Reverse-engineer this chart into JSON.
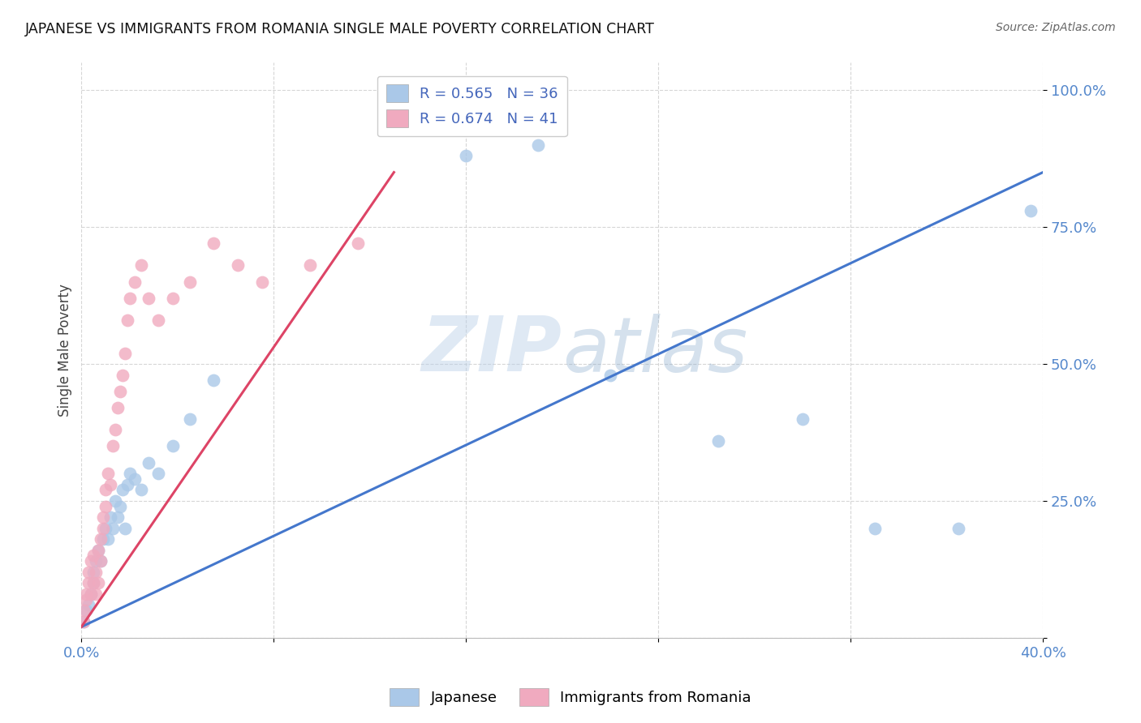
{
  "title": "JAPANESE VS IMMIGRANTS FROM ROMANIA SINGLE MALE POVERTY CORRELATION CHART",
  "source": "Source: ZipAtlas.com",
  "ylabel": "Single Male Poverty",
  "watermark": "ZIPatlas",
  "xlim": [
    0.0,
    0.4
  ],
  "ylim": [
    0.0,
    1.05
  ],
  "blue_R": 0.565,
  "blue_N": 36,
  "pink_R": 0.674,
  "pink_N": 41,
  "blue_color": "#aac8e8",
  "pink_color": "#f0aabf",
  "blue_line_color": "#4477cc",
  "pink_line_color": "#dd4466",
  "legend_label_blue": "Japanese",
  "legend_label_pink": "Immigrants from Romania",
  "blue_x": [
    0.001,
    0.002,
    0.003,
    0.004,
    0.005,
    0.005,
    0.006,
    0.007,
    0.008,
    0.009,
    0.01,
    0.011,
    0.012,
    0.013,
    0.014,
    0.015,
    0.016,
    0.017,
    0.018,
    0.019,
    0.02,
    0.022,
    0.025,
    0.028,
    0.032,
    0.038,
    0.045,
    0.055,
    0.16,
    0.19,
    0.22,
    0.265,
    0.3,
    0.33,
    0.365,
    0.395
  ],
  "blue_y": [
    0.03,
    0.05,
    0.06,
    0.08,
    0.1,
    0.12,
    0.14,
    0.16,
    0.14,
    0.18,
    0.2,
    0.18,
    0.22,
    0.2,
    0.25,
    0.22,
    0.24,
    0.27,
    0.2,
    0.28,
    0.3,
    0.29,
    0.27,
    0.32,
    0.3,
    0.35,
    0.4,
    0.47,
    0.88,
    0.9,
    0.48,
    0.36,
    0.4,
    0.2,
    0.2,
    0.78
  ],
  "pink_x": [
    0.001,
    0.001,
    0.002,
    0.002,
    0.003,
    0.003,
    0.004,
    0.004,
    0.005,
    0.005,
    0.006,
    0.006,
    0.007,
    0.007,
    0.008,
    0.008,
    0.009,
    0.009,
    0.01,
    0.01,
    0.011,
    0.012,
    0.013,
    0.014,
    0.015,
    0.016,
    0.017,
    0.018,
    0.019,
    0.02,
    0.022,
    0.025,
    0.028,
    0.032,
    0.038,
    0.045,
    0.055,
    0.065,
    0.075,
    0.095,
    0.115
  ],
  "pink_y": [
    0.03,
    0.05,
    0.07,
    0.08,
    0.1,
    0.12,
    0.08,
    0.14,
    0.1,
    0.15,
    0.08,
    0.12,
    0.1,
    0.16,
    0.14,
    0.18,
    0.2,
    0.22,
    0.24,
    0.27,
    0.3,
    0.28,
    0.35,
    0.38,
    0.42,
    0.45,
    0.48,
    0.52,
    0.58,
    0.62,
    0.65,
    0.68,
    0.62,
    0.58,
    0.62,
    0.65,
    0.72,
    0.68,
    0.65,
    0.68,
    0.72
  ],
  "blue_line_x": [
    0.0,
    0.4
  ],
  "blue_line_y": [
    0.02,
    0.85
  ],
  "pink_line_x": [
    0.0,
    0.13
  ],
  "pink_line_y": [
    0.02,
    0.85
  ]
}
